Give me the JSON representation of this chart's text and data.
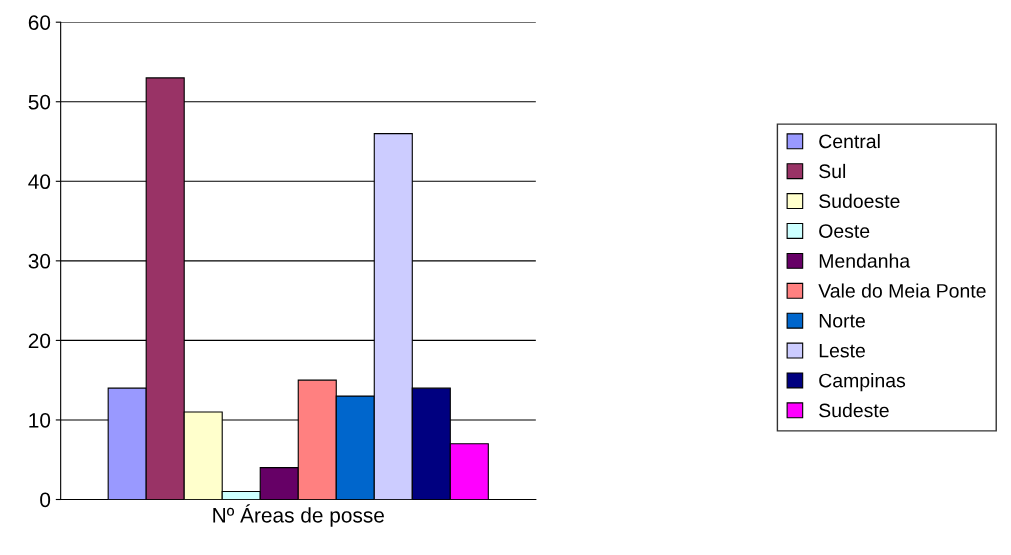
{
  "chart_data": {
    "type": "bar",
    "categories": [
      "Nº Áreas de posse"
    ],
    "series": [
      {
        "name": "Central",
        "color": "#9999ff",
        "values": [
          14
        ]
      },
      {
        "name": "Sul",
        "color": "#993366",
        "values": [
          53
        ]
      },
      {
        "name": "Sudoeste",
        "color": "#ffffcc",
        "values": [
          11
        ]
      },
      {
        "name": "Oeste",
        "color": "#ccffff",
        "values": [
          1
        ]
      },
      {
        "name": "Mendanha",
        "color": "#660066",
        "values": [
          4
        ]
      },
      {
        "name": "Vale do Meia Ponte",
        "color": "#ff8080",
        "values": [
          15
        ]
      },
      {
        "name": "Norte",
        "color": "#0066cc",
        "values": [
          13
        ]
      },
      {
        "name": "Leste",
        "color": "#ccccff",
        "values": [
          46
        ]
      },
      {
        "name": "Campinas",
        "color": "#000080",
        "values": [
          14
        ]
      },
      {
        "name": "Sudeste",
        "color": "#ff00ff",
        "values": [
          7
        ]
      }
    ],
    "ylim": [
      0,
      60
    ],
    "yticks": [
      0,
      10,
      20,
      30,
      40,
      50,
      60
    ],
    "grid": "y",
    "legend": "right"
  }
}
